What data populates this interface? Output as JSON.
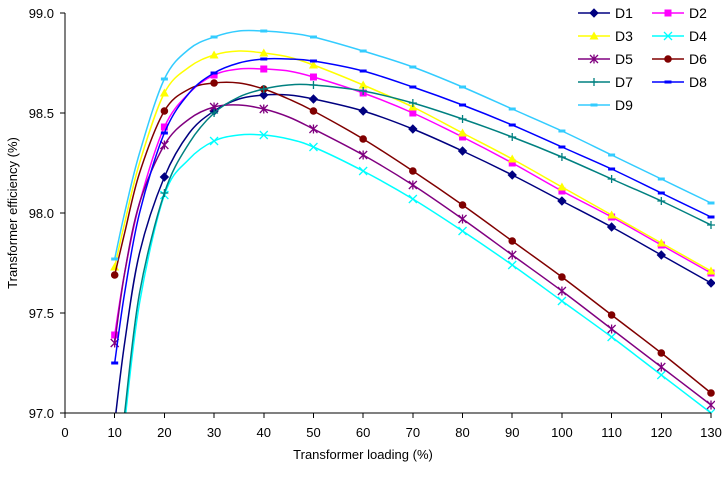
{
  "chart_data": {
    "type": "line",
    "xlabel": "Transformer loading (%)",
    "ylabel": "Transformer efficiency (%)",
    "xlim": [
      0,
      130
    ],
    "ylim": [
      97.0,
      99.0
    ],
    "x_ticks": [
      "0",
      "10",
      "20",
      "30",
      "40",
      "50",
      "60",
      "70",
      "80",
      "90",
      "100",
      "110",
      "120",
      "130"
    ],
    "y_ticks": [
      "97.0",
      "97.5",
      "98.0",
      "98.5",
      "99.0"
    ],
    "grid": false,
    "legend_position": "top-right",
    "marker_x": [
      10,
      20,
      30,
      40,
      50,
      60,
      70,
      80,
      90,
      100,
      110,
      120,
      130
    ],
    "series": [
      {
        "name": "D1",
        "color": "#000080",
        "marker": "diamond",
        "x": [
          10,
          12,
          15,
          20,
          25,
          30,
          35,
          40,
          45,
          50,
          60,
          70,
          80,
          90,
          100,
          110,
          120,
          130
        ],
        "y": [
          96.95,
          97.35,
          97.8,
          98.18,
          98.4,
          98.51,
          98.57,
          98.59,
          98.59,
          98.57,
          98.51,
          98.42,
          98.31,
          98.19,
          98.06,
          97.93,
          97.79,
          97.65
        ]
      },
      {
        "name": "D2",
        "color": "#ff00ff",
        "marker": "square",
        "x": [
          10,
          12,
          15,
          20,
          25,
          30,
          35,
          40,
          45,
          50,
          60,
          70,
          80,
          90,
          100,
          110,
          120,
          130
        ],
        "y": [
          97.39,
          97.7,
          98.05,
          98.43,
          98.6,
          98.69,
          98.72,
          98.72,
          98.71,
          98.68,
          98.6,
          98.5,
          98.38,
          98.25,
          98.11,
          97.98,
          97.84,
          97.7
        ]
      },
      {
        "name": "D3",
        "color": "#ffff00",
        "marker": "triangle",
        "x": [
          10,
          12,
          15,
          20,
          25,
          30,
          35,
          40,
          45,
          50,
          60,
          70,
          80,
          90,
          100,
          110,
          120,
          130
        ],
        "y": [
          97.73,
          97.95,
          98.25,
          98.6,
          98.73,
          98.79,
          98.81,
          98.8,
          98.78,
          98.74,
          98.64,
          98.53,
          98.4,
          98.27,
          98.13,
          97.99,
          97.85,
          97.71
        ]
      },
      {
        "name": "D4",
        "color": "#00ffff",
        "marker": "x",
        "x": [
          12,
          15,
          20,
          25,
          30,
          35,
          40,
          45,
          50,
          60,
          70,
          80,
          90,
          100,
          110,
          120,
          130
        ],
        "y": [
          96.95,
          97.55,
          98.09,
          98.27,
          98.36,
          98.39,
          98.39,
          98.37,
          98.33,
          98.21,
          98.07,
          97.91,
          97.74,
          97.56,
          97.38,
          97.19,
          97.0
        ]
      },
      {
        "name": "D5",
        "color": "#800080",
        "marker": "star",
        "x": [
          10,
          12,
          15,
          20,
          25,
          30,
          35,
          40,
          45,
          50,
          60,
          70,
          80,
          90,
          100,
          110,
          120,
          130
        ],
        "y": [
          97.35,
          97.7,
          98.05,
          98.34,
          98.47,
          98.53,
          98.54,
          98.52,
          98.48,
          98.42,
          98.29,
          98.14,
          97.97,
          97.79,
          97.61,
          97.42,
          97.23,
          97.04
        ]
      },
      {
        "name": "D6",
        "color": "#800000",
        "marker": "circle",
        "x": [
          10,
          12,
          15,
          20,
          25,
          30,
          35,
          40,
          45,
          50,
          60,
          70,
          80,
          90,
          100,
          110,
          120,
          130
        ],
        "y": [
          97.69,
          97.9,
          98.2,
          98.51,
          98.62,
          98.65,
          98.65,
          98.62,
          98.57,
          98.51,
          98.37,
          98.21,
          98.04,
          97.86,
          97.68,
          97.49,
          97.3,
          97.1
        ]
      },
      {
        "name": "D7",
        "color": "#008080",
        "marker": "plus",
        "x": [
          12,
          15,
          20,
          25,
          30,
          35,
          40,
          45,
          50,
          60,
          70,
          80,
          90,
          100,
          110,
          120,
          130
        ],
        "y": [
          97.0,
          97.6,
          98.1,
          98.35,
          98.5,
          98.58,
          98.62,
          98.64,
          98.64,
          98.61,
          98.55,
          98.47,
          98.38,
          98.28,
          98.17,
          98.06,
          97.94
        ]
      },
      {
        "name": "D8",
        "color": "#0000ff",
        "marker": "dash",
        "x": [
          10,
          12,
          15,
          20,
          25,
          30,
          35,
          40,
          45,
          50,
          60,
          70,
          80,
          90,
          100,
          110,
          120,
          130
        ],
        "y": [
          97.25,
          97.6,
          98.0,
          98.4,
          98.6,
          98.7,
          98.75,
          98.77,
          98.77,
          98.76,
          98.71,
          98.63,
          98.54,
          98.44,
          98.33,
          98.22,
          98.1,
          97.98
        ]
      },
      {
        "name": "D9",
        "color": "#33ccff",
        "marker": "dash",
        "x": [
          10,
          12,
          15,
          20,
          25,
          30,
          35,
          40,
          45,
          50,
          60,
          70,
          80,
          90,
          100,
          110,
          120,
          130
        ],
        "y": [
          97.77,
          98.0,
          98.3,
          98.67,
          98.82,
          98.88,
          98.91,
          98.91,
          98.9,
          98.88,
          98.81,
          98.73,
          98.63,
          98.52,
          98.41,
          98.29,
          98.17,
          98.05
        ]
      }
    ]
  }
}
